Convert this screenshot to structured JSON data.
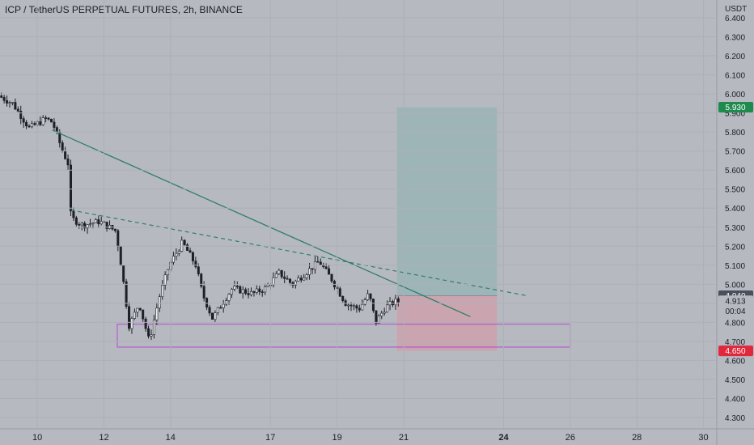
{
  "chart_data": {
    "type": "candlestick",
    "title": "ICP / TetherUS PERPETUAL FUTURES, 2h, BINANCE",
    "currency": "USDT",
    "ylim": [
      4.3,
      6.4
    ],
    "y_ticks": [
      "4.300",
      "4.400",
      "4.500",
      "4.600",
      "4.700",
      "4.800",
      "4.900",
      "5.000",
      "5.100",
      "5.200",
      "5.300",
      "5.400",
      "5.500",
      "5.600",
      "5.700",
      "5.800",
      "5.900",
      "6.000",
      "6.100",
      "6.200",
      "6.300",
      "6.400"
    ],
    "x_range_days": [
      8.88,
      30.4
    ],
    "x_ticks": [
      {
        "label": "10",
        "day": 10,
        "bold": false
      },
      {
        "label": "12",
        "day": 12,
        "bold": false
      },
      {
        "label": "14",
        "day": 14,
        "bold": false
      },
      {
        "label": "17",
        "day": 17,
        "bold": false
      },
      {
        "label": "19",
        "day": 19,
        "bold": false
      },
      {
        "label": "21",
        "day": 21,
        "bold": false
      },
      {
        "label": "24",
        "day": 24,
        "bold": true
      },
      {
        "label": "26",
        "day": 26,
        "bold": false
      },
      {
        "label": "28",
        "day": 28,
        "bold": false
      },
      {
        "label": "30",
        "day": 30,
        "bold": false
      }
    ],
    "price_path": [
      [
        8.88,
        5.99
      ],
      [
        9.3,
        5.95
      ],
      [
        9.8,
        5.82
      ],
      [
        10.3,
        5.87
      ],
      [
        10.5,
        5.85
      ],
      [
        10.8,
        5.7
      ],
      [
        11.0,
        5.62
      ],
      [
        11.05,
        5.35
      ],
      [
        11.4,
        5.31
      ],
      [
        11.9,
        5.33
      ],
      [
        12.4,
        5.28
      ],
      [
        12.6,
        5.05
      ],
      [
        12.8,
        4.78
      ],
      [
        13.1,
        4.9
      ],
      [
        13.4,
        4.7
      ],
      [
        13.7,
        4.93
      ],
      [
        14.0,
        5.1
      ],
      [
        14.4,
        5.22
      ],
      [
        14.8,
        5.1
      ],
      [
        15.0,
        4.95
      ],
      [
        15.3,
        4.82
      ],
      [
        15.6,
        4.9
      ],
      [
        15.9,
        4.98
      ],
      [
        16.5,
        4.95
      ],
      [
        16.9,
        4.98
      ],
      [
        17.3,
        5.06
      ],
      [
        17.7,
        5.0
      ],
      [
        18.1,
        5.06
      ],
      [
        18.5,
        5.12
      ],
      [
        18.9,
        5.02
      ],
      [
        19.3,
        4.9
      ],
      [
        19.7,
        4.87
      ],
      [
        20.0,
        4.95
      ],
      [
        20.2,
        4.8
      ],
      [
        20.5,
        4.88
      ],
      [
        20.8,
        4.91
      ]
    ],
    "drawings": {
      "trendline_solid": {
        "from": [
          10.45,
          5.81
        ],
        "to": [
          23.0,
          4.83
        ],
        "color": "#2e7d6e"
      },
      "trendline_dashed": {
        "from": [
          11.0,
          5.39
        ],
        "to": [
          24.7,
          4.94
        ],
        "color": "#2e7d6e"
      },
      "support_zone": {
        "day_from": 12.4,
        "day_to": 26.0,
        "price_from": 4.67,
        "price_to": 4.79,
        "color": "#b24bd1"
      },
      "position": {
        "day_from": 20.8,
        "day_to": 23.8,
        "entry": 4.94,
        "target": 5.93,
        "stop": 4.65
      }
    },
    "price_tags": [
      {
        "label": "5.930",
        "price": 5.93,
        "bg": "#1f8a4d",
        "color": "#ffffff"
      },
      {
        "label": "4.940",
        "price": 4.94,
        "bg": "#4a4f5c",
        "color": "#ffffff"
      },
      {
        "label": "4.913",
        "price": 4.913,
        "bg": "#b7b9c1",
        "color": "#1d1f26"
      },
      {
        "label": "00:04",
        "price": 4.86,
        "bg": "#b7b9c1",
        "color": "#1d1f26"
      },
      {
        "label": "4.650",
        "price": 4.65,
        "bg": "#e0283d",
        "color": "#ffffff"
      }
    ]
  }
}
